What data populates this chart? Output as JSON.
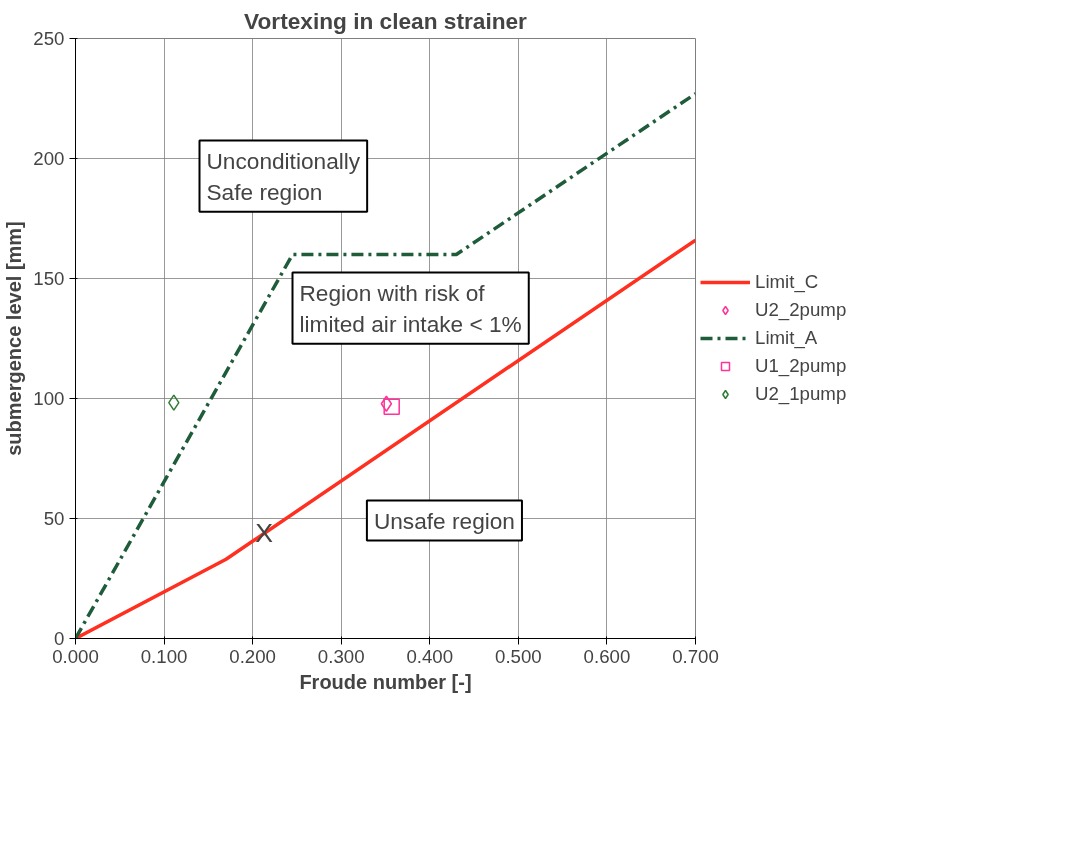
{
  "chart_data": {
    "type": "line",
    "title": "Vortexing in clean strainer",
    "xlabel": "Froude number [-]",
    "ylabel": "submergence level [mm]",
    "series": [
      {
        "name": "Limit_C",
        "color": "#ff3020",
        "line_style": "solid",
        "marker": "none",
        "x": [
          0,
          0.17,
          0.7
        ],
        "values": [
          0,
          33,
          166
        ]
      },
      {
        "name": "U2_2pump",
        "type": "scatter",
        "color": "#ff3399",
        "marker": "diamond",
        "x": [
          0.351
        ],
        "values": [
          97.8
        ]
      },
      {
        "name": "Limit_A",
        "color": "#1f5c3a",
        "line_style": "dashdot",
        "marker": "none",
        "x": [
          0,
          0.245,
          0.43,
          0.7
        ],
        "values": [
          0,
          160,
          160,
          227
        ]
      },
      {
        "name": "U1_2pump",
        "type": "scatter",
        "color": "#ff3399",
        "marker": "square",
        "x": [
          0.357
        ],
        "values": [
          96.6
        ]
      },
      {
        "name": "U2_1pump",
        "type": "scatter",
        "color": "#2e7d32",
        "marker": "diamond",
        "x": [
          0.111
        ],
        "values": [
          98.3
        ]
      }
    ],
    "annotations": [
      "Unconditionally\nSafe region",
      "Region with risk of\nlimited air intake < 1%",
      "Unsafe region",
      {
        "text": "X",
        "x": 0.213,
        "y": 44
      }
    ],
    "xlim": [
      0,
      0.7
    ],
    "ylim": [
      0,
      250
    ],
    "xticks": [
      {
        "value": 0,
        "label": "0.000"
      },
      {
        "value": 0.1,
        "label": "0.100"
      },
      {
        "value": 0.2,
        "label": "0.200"
      },
      {
        "value": 0.3,
        "label": "0.300"
      },
      {
        "value": 0.4,
        "label": "0.400"
      },
      {
        "value": 0.5,
        "label": "0.500"
      },
      {
        "value": 0.6,
        "label": "0.600"
      },
      {
        "value": 0.7,
        "label": "0.700"
      }
    ],
    "yticks": [
      0,
      50,
      100,
      150,
      200,
      250
    ],
    "grid": true,
    "legend": "right"
  }
}
